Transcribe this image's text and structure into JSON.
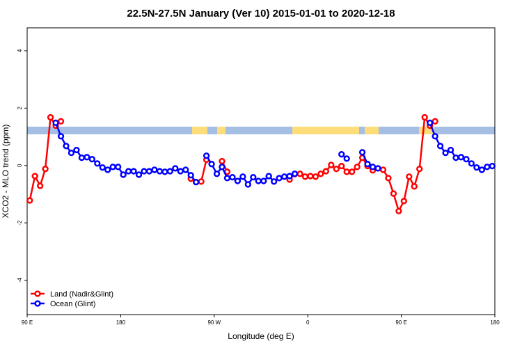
{
  "chart_data": {
    "type": "line",
    "title": "22.5N-27.5N January (Ver 10)   2015-01-01 to 2020-12-18",
    "x_label": "Longitude (deg E)",
    "y_label": "XCO2 - MLO trend (ppm)",
    "xlim": [
      90,
      540
    ],
    "ylim": [
      -5.2,
      4.8
    ],
    "xticks": [
      {
        "value": 90,
        "label": "90 E"
      },
      180,
      {
        "value": 270,
        "label": "90 W"
      },
      {
        "value": 360,
        "label": "0"
      },
      {
        "value": 450,
        "label": "90 E"
      },
      {
        "value": 540,
        "label": "180"
      }
    ],
    "yticks": [
      -4,
      -2,
      0,
      2,
      4
    ],
    "legend": "bottom-left",
    "x": [
      92.5,
      97.5,
      102.5,
      107.5,
      112.5,
      117.5,
      122.5,
      127.5,
      132.5,
      137.5,
      142.5,
      147.5,
      152.5,
      157.5,
      162.5,
      167.5,
      172.5,
      177.5,
      182.5,
      187.5,
      192.5,
      197.5,
      202.5,
      207.5,
      212.5,
      217.5,
      222.5,
      227.5,
      232.5,
      237.5,
      242.5,
      247.5,
      252.5,
      257.5,
      262.5,
      267.5,
      272.5,
      277.5,
      282.5,
      287.5,
      292.5,
      297.5,
      302.5,
      307.5,
      312.5,
      317.5,
      322.5,
      327.5,
      332.5,
      337.5,
      342.5,
      347.5,
      352.5,
      357.5,
      362.5,
      367.5,
      372.5,
      377.5,
      382.5,
      387.5,
      392.5,
      397.5,
      402.5,
      407.5,
      412.5,
      417.5,
      422.5,
      427.5,
      432.5,
      437.5,
      442.5,
      447.5,
      452.5,
      457.5,
      462.5,
      467.5,
      472.5,
      477.5,
      482.5,
      487.5,
      492.5,
      497.5,
      502.5,
      507.5,
      512.5,
      517.5,
      522.5,
      527.5,
      532.5,
      537.5
    ],
    "series": [
      {
        "name": "Land (Nadir&Glint)",
        "color": "#ff0000",
        "values": [
          -1.22,
          -0.37,
          -0.71,
          -0.12,
          1.68,
          1.39,
          1.54,
          null,
          null,
          null,
          null,
          null,
          null,
          null,
          null,
          null,
          null,
          null,
          null,
          null,
          null,
          null,
          null,
          null,
          null,
          null,
          null,
          null,
          null,
          null,
          null,
          -0.46,
          -0.58,
          -0.56,
          0.2,
          null,
          null,
          0.15,
          -0.22,
          null,
          null,
          null,
          null,
          null,
          null,
          null,
          null,
          null,
          null,
          null,
          -0.49,
          -0.3,
          -0.29,
          -0.39,
          -0.37,
          -0.39,
          -0.29,
          -0.2,
          0.02,
          -0.12,
          -0.02,
          -0.22,
          -0.22,
          -0.05,
          0.27,
          -0.02,
          -0.17,
          -0.1,
          -0.15,
          -0.44,
          -0.98,
          -1.59,
          -1.24,
          -0.39,
          -0.73,
          -0.12,
          1.68,
          1.39,
          1.54,
          null,
          null,
          null,
          null,
          null,
          null,
          null,
          null,
          null,
          null,
          null
        ]
      },
      {
        "name": "Ocean (Glint)",
        "color": "#0000ff",
        "values": [
          null,
          null,
          null,
          null,
          null,
          1.49,
          1.02,
          0.68,
          0.44,
          0.54,
          0.27,
          0.29,
          0.22,
          0.07,
          -0.07,
          -0.15,
          -0.05,
          -0.05,
          -0.32,
          -0.2,
          -0.2,
          -0.32,
          -0.2,
          -0.2,
          -0.15,
          -0.2,
          -0.22,
          -0.2,
          -0.1,
          -0.2,
          -0.15,
          -0.34,
          -0.58,
          null,
          0.34,
          0.05,
          -0.29,
          -0.05,
          -0.44,
          -0.41,
          -0.54,
          -0.39,
          -0.66,
          -0.41,
          -0.54,
          -0.54,
          -0.37,
          -0.56,
          -0.44,
          -0.39,
          -0.37,
          -0.29,
          null,
          null,
          null,
          null,
          null,
          null,
          null,
          null,
          0.39,
          0.24,
          null,
          null,
          0.46,
          0.05,
          -0.05,
          -0.1,
          null,
          null,
          null,
          null,
          null,
          null,
          null,
          null,
          null,
          1.49,
          1.02,
          0.68,
          0.44,
          0.54,
          0.27,
          0.29,
          0.22,
          0.07,
          -0.07,
          -0.15,
          -0.05,
          -0.02
        ]
      }
    ]
  }
}
